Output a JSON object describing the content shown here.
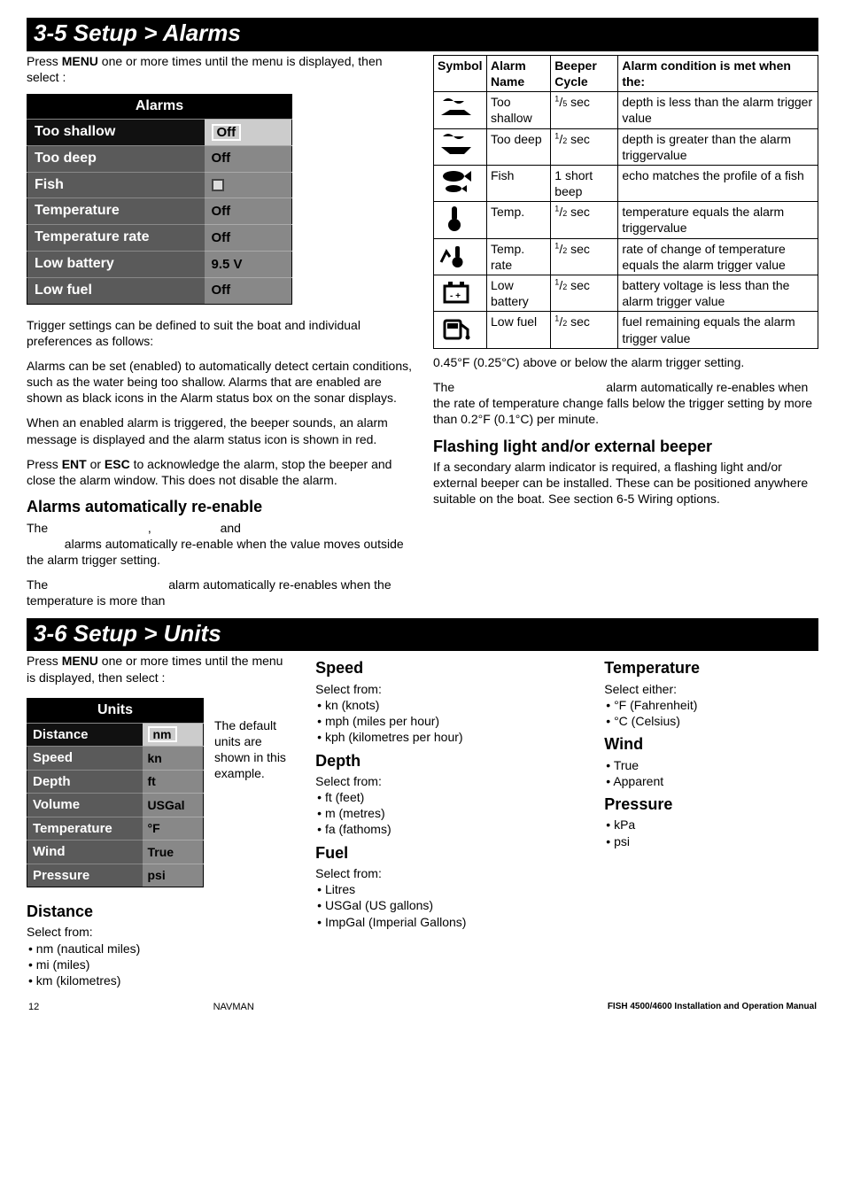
{
  "sec1": {
    "title": "3-5 Setup > Alarms",
    "intro_a": "Press ",
    "intro_b": "MENU",
    "intro_c": " one or more times until the menu is displayed, then select ",
    "intro_d": ":",
    "alarms_table": {
      "header": "Alarms",
      "rows": [
        {
          "label": "Too shallow",
          "val": "Off",
          "selected": true,
          "box": true
        },
        {
          "label": "Too deep",
          "val": "Off"
        },
        {
          "label": "Fish",
          "val": "",
          "checkbox": true
        },
        {
          "label": "Temperature",
          "val": "Off"
        },
        {
          "label": "Temperature rate",
          "val": "Off"
        },
        {
          "label": "Low battery",
          "val": "9.5 V"
        },
        {
          "label": "Low fuel",
          "val": "Off"
        }
      ]
    },
    "p1": "Trigger settings can be defined to suit the boat and individual preferences as follows:",
    "p2": "Alarms can be set (enabled) to automatically detect certain conditions, such as the water being too shallow. Alarms that are enabled are shown as black icons in the Alarm status box on the sonar displays.",
    "p3": "When an enabled alarm is triggered, the beeper sounds, an alarm message is displayed and the alarm status icon is shown in red.",
    "p4a": "Press ",
    "p4b": "ENT",
    "p4c": " or ",
    "p4d": "ESC",
    "p4e": " to acknowledge the alarm, stop the beeper and close the alarm window. This does not disable the alarm.",
    "h_auto": "Alarms automatically re-enable",
    "p5": "The                             ,                    and",
    "p6": "           alarms automatically re-enable when the value moves outside the alarm trigger setting.",
    "p7": "The                                   alarm automatically re-enables when the temperature is more than",
    "cond_table": {
      "h_symbol": "Symbol",
      "h_name": "Alarm Name",
      "h_cycle": "Beeper Cycle",
      "h_cond": "Alarm condition is met when the:",
      "rows": [
        {
          "icon": "shallow",
          "name": "Too shallow",
          "cycle": "1/5 sec",
          "cond": "depth is less than the alarm trigger value"
        },
        {
          "icon": "deep",
          "name": "Too deep",
          "cycle": "1/2 sec",
          "cond": "depth is greater than the alarm triggervalue"
        },
        {
          "icon": "fish",
          "name": "Fish",
          "cycle": "1 short beep",
          "cond": "echo matches the profile of a fish"
        },
        {
          "icon": "temp",
          "name": "Temp.",
          "cycle": "1/2 sec",
          "cond": "temperature equals the alarm triggervalue"
        },
        {
          "icon": "temprate",
          "name": "Temp. rate",
          "cycle": "1/2 sec",
          "cond": "rate of change of temperature equals the alarm trigger value"
        },
        {
          "icon": "battery",
          "name": "Low battery",
          "cycle": "1/2 sec",
          "cond": "battery voltage is less than the alarm trigger value"
        },
        {
          "icon": "fuel",
          "name": "Low fuel",
          "cycle": "1/2 sec",
          "cond": "fuel remaining equals the alarm trigger value"
        }
      ]
    },
    "p8": "0.45°F (0.25°C) above or below the alarm trigger setting.",
    "p9": "The                                            alarm automatically re-enables when the rate of temperature change falls below the trigger setting by more than 0.2°F (0.1°C) per minute.",
    "h_flash": "Flashing light and/or external beeper",
    "p10": "If a secondary alarm indicator is required, a flashing light and/or external beeper can be installed. These can be positioned anywhere suitable on the boat. See section 6-5 Wiring options."
  },
  "sec2": {
    "title": "3-6 Setup > Units",
    "intro_a": "Press ",
    "intro_b": "MENU",
    "intro_c": " one or more times until the menu is displayed, then select ",
    "intro_d": ":",
    "units_table": {
      "header": "Units",
      "rows": [
        {
          "label": "Distance",
          "val": "nm",
          "selected": true,
          "box": true
        },
        {
          "label": "Speed",
          "val": "kn"
        },
        {
          "label": "Depth",
          "val": "ft"
        },
        {
          "label": "Volume",
          "val": "USGal"
        },
        {
          "label": "Temperature",
          "val": "°F"
        },
        {
          "label": "Wind",
          "val": "True"
        },
        {
          "label": "Pressure",
          "val": "psi"
        }
      ]
    },
    "sidenote": " The default units are shown in this example.",
    "h_distance": "Distance",
    "distance_lead": "Select from:",
    "distance_items": [
      "nm (nautical miles)",
      "mi (miles)",
      "km (kilometres)"
    ],
    "h_speed": "Speed",
    "speed_lead": "Select from:",
    "speed_items": [
      "kn (knots)",
      "mph (miles per hour)",
      "kph (kilometres per hour)"
    ],
    "h_depth": "Depth",
    "depth_lead": "Select from:",
    "depth_items": [
      "ft (feet)",
      "m (metres)",
      "fa (fathoms)"
    ],
    "h_fuel": "Fuel",
    "fuel_lead": "Select from:",
    "fuel_items": [
      "Litres",
      "USGal (US gallons)",
      "ImpGal (Imperial Gallons)"
    ],
    "h_temp": "Temperature",
    "temp_lead": "Select either:",
    "temp_items": [
      "°F (Fahrenheit)",
      "°C (Celsius)"
    ],
    "h_wind": "Wind",
    "wind_items": [
      "True",
      "Apparent"
    ],
    "h_pressure": "Pressure",
    "pressure_items": [
      "kPa",
      "psi"
    ]
  },
  "footer": {
    "page": "12",
    "brand": "NAVMAN",
    "doc": "FISH 4500/4600 Installation and Operation Manual"
  },
  "colors": {
    "header_bg": "#000000",
    "header_fg": "#ffffff",
    "row_label_bg": "#5a5a5a",
    "row_val_bg": "#888888"
  }
}
